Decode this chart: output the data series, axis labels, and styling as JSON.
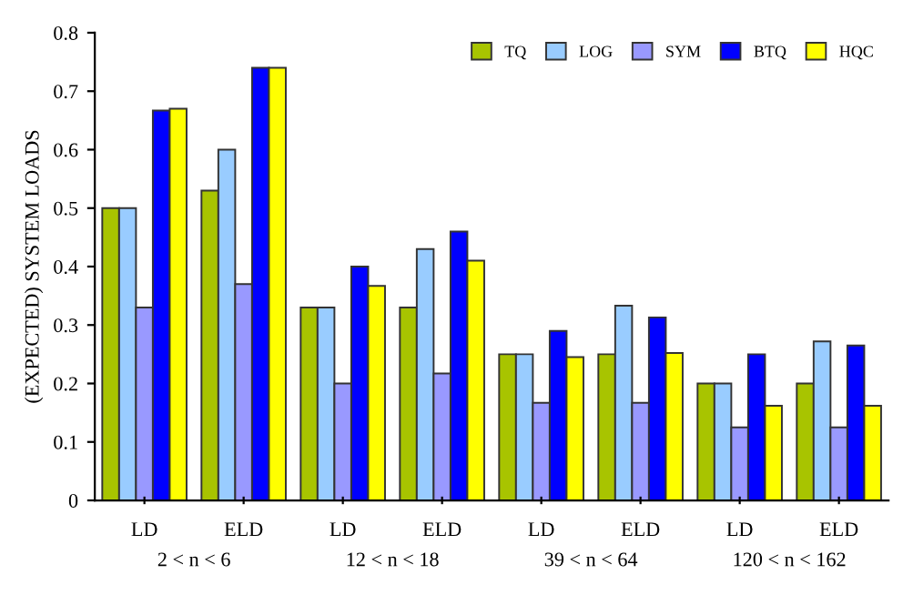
{
  "chart_data": {
    "type": "bar",
    "ylabel": "(EXPECTED) SYSTEM LOADS",
    "categories": [
      "LD",
      "ELD",
      "LD",
      "ELD",
      "LD",
      "ELD",
      "LD",
      "ELD"
    ],
    "series": [
      {
        "name": "TQ",
        "color": "#a8c400",
        "values": [
          0.5,
          0.53,
          0.33,
          0.33,
          0.25,
          0.25,
          0.2,
          0.2
        ]
      },
      {
        "name": "LOG",
        "color": "#99ccff",
        "values": [
          0.5,
          0.6,
          0.33,
          0.43,
          0.25,
          0.333,
          0.2,
          0.272
        ]
      },
      {
        "name": "SYM",
        "color": "#9999ff",
        "values": [
          0.33,
          0.37,
          0.2,
          0.217,
          0.167,
          0.167,
          0.125,
          0.125
        ]
      },
      {
        "name": "BTQ",
        "color": "#0000ff",
        "values": [
          0.667,
          0.74,
          0.4,
          0.46,
          0.29,
          0.313,
          0.25,
          0.265
        ]
      },
      {
        "name": "HQC",
        "color": "#ffff00",
        "values": [
          0.67,
          0.74,
          0.367,
          0.41,
          0.245,
          0.252,
          0.162,
          0.162
        ]
      }
    ],
    "ylim": [
      0,
      0.8
    ],
    "yticks": [
      0,
      0.1,
      0.2,
      0.3,
      0.4,
      0.5,
      0.6,
      0.7,
      0.8
    ],
    "annotations": [
      "2 < n < 6",
      "12 < n < 18",
      "39 < n < 64",
      "120 < n < 162"
    ],
    "legend": "top right",
    "grid": false
  }
}
